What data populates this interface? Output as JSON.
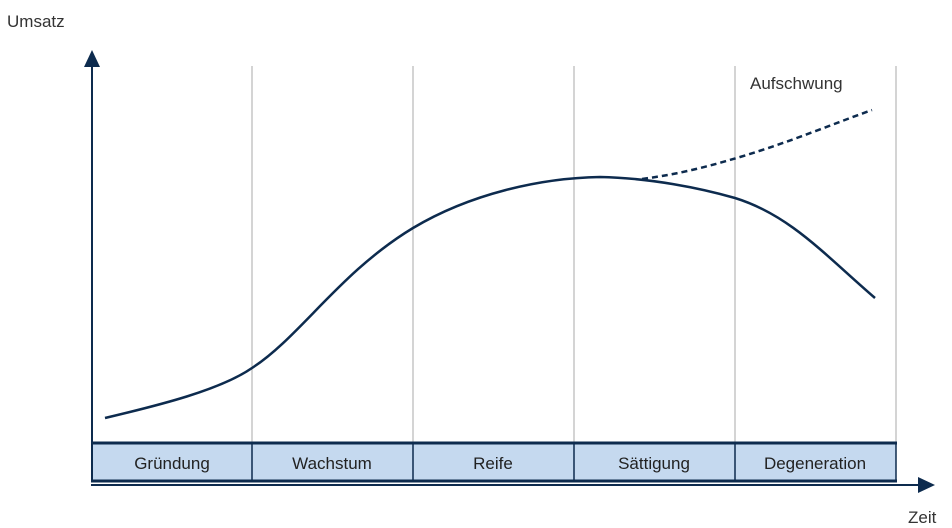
{
  "axes": {
    "y_label": "Umsatz",
    "x_label": "Zeit"
  },
  "phases": [
    {
      "label": "Gründung"
    },
    {
      "label": "Wachstum"
    },
    {
      "label": "Reife"
    },
    {
      "label": "Sättigung"
    },
    {
      "label": "Degeneration"
    }
  ],
  "annotation": {
    "label": "Aufschwung"
  },
  "colors": {
    "curve": "#0d2b4e",
    "axis": "#0d2b4e",
    "phase_fill": "#c5d9ef",
    "divider": "#a8a8a8"
  }
}
